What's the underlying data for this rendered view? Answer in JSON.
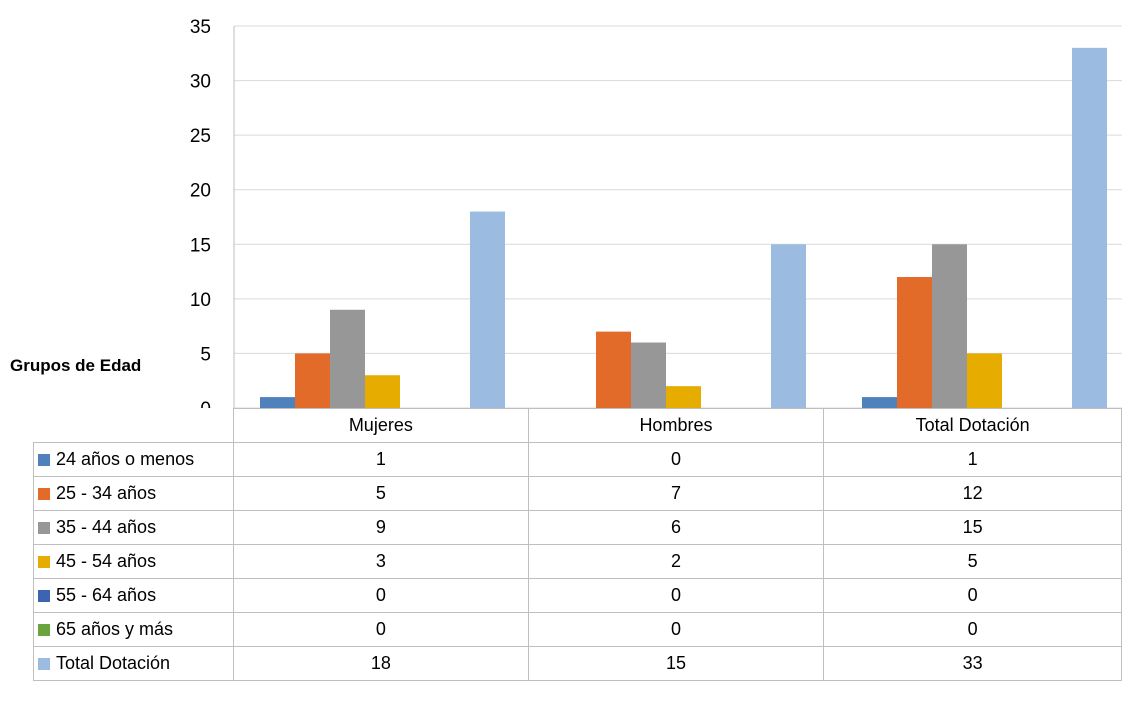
{
  "side_label": "Grupos de Edad",
  "chart_data": {
    "type": "bar",
    "categories": [
      "Mujeres",
      "Hombres",
      "Total Dotación"
    ],
    "ylim": [
      0,
      35
    ],
    "yticks": [
      "0",
      "5",
      "10",
      "15",
      "20",
      "25",
      "30",
      "35"
    ],
    "grid": true,
    "legend": "data-table-below",
    "series": [
      {
        "name": "24 años o menos",
        "color": "#4f81bd",
        "values": [
          1,
          0,
          1
        ]
      },
      {
        "name": "25 - 34 años",
        "color": "#e26b2a",
        "values": [
          5,
          7,
          12
        ]
      },
      {
        "name": "35 - 44 años",
        "color": "#979797",
        "values": [
          9,
          6,
          15
        ]
      },
      {
        "name": "45 - 54 años",
        "color": "#e6ac00",
        "values": [
          3,
          2,
          5
        ]
      },
      {
        "name": "55 - 64 años",
        "color": "#3b65b0",
        "values": [
          0,
          0,
          0
        ]
      },
      {
        "name": "65 años y más",
        "color": "#6aa43f",
        "values": [
          0,
          0,
          0
        ]
      },
      {
        "name": "Total Dotación",
        "color": "#9cbbe0",
        "values": [
          18,
          15,
          33
        ]
      }
    ]
  }
}
